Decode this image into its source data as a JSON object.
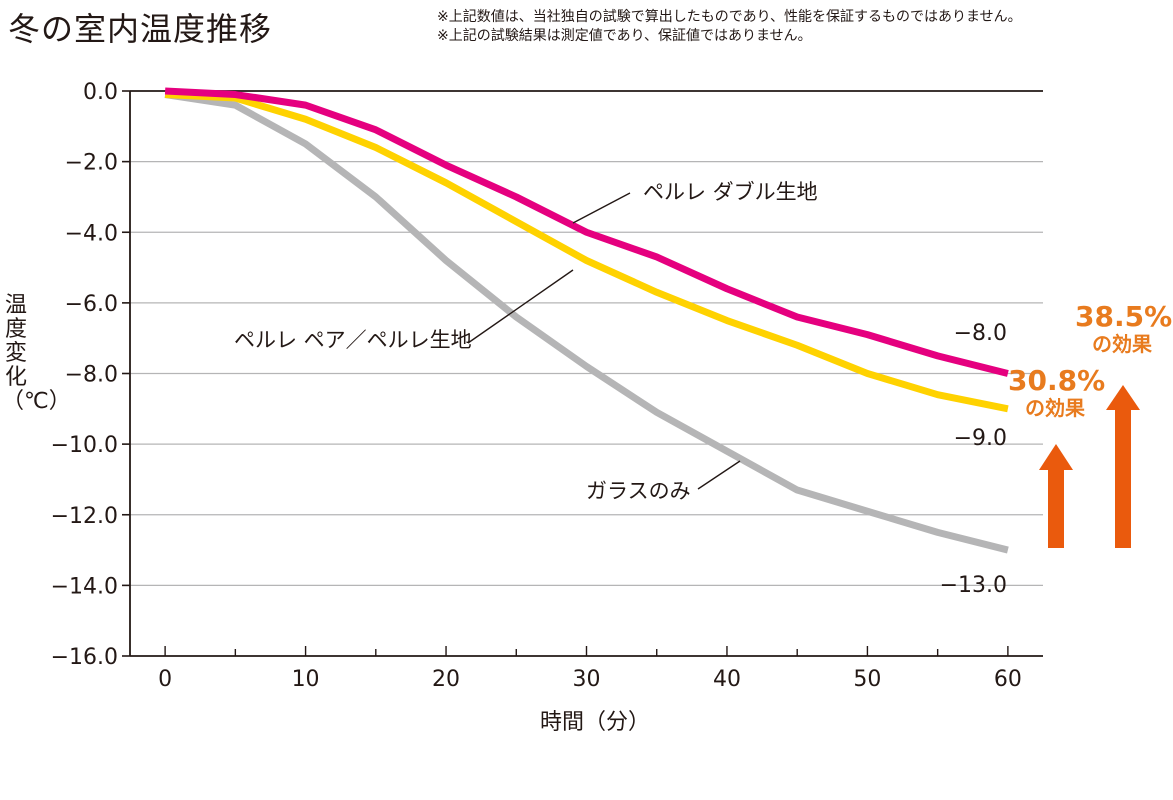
{
  "title": "冬の室内温度推移",
  "notes": [
    "※上記数値は、当社独自の試験で算出したものであり、性能を保証するものではありません。",
    "※上記の試験結果は測定値であり、保証値ではありません。"
  ],
  "colors": {
    "double": "#e5007f",
    "pair": "#ffd200",
    "glass": "#b5b5b6",
    "effect": "#e87b1e",
    "arrow": "#ea5a0d",
    "axis": "#231815",
    "grid": "#b5b5b6"
  },
  "chart_data": {
    "type": "line",
    "xlabel": "時間（分）",
    "ylabel": "温度変化（℃）",
    "x": [
      0,
      5,
      10,
      15,
      20,
      25,
      30,
      35,
      40,
      45,
      50,
      55,
      60
    ],
    "xticks": [
      "0",
      "10",
      "20",
      "30",
      "40",
      "50",
      "60"
    ],
    "xtick_values": [
      0,
      10,
      20,
      30,
      40,
      50,
      60
    ],
    "yticks": [
      "0.0",
      "−2.0",
      "−4.0",
      "−6.0",
      "−8.0",
      "−10.0",
      "−12.0",
      "−14.0",
      "−16.0"
    ],
    "ytick_values": [
      0,
      -2,
      -4,
      -6,
      -8,
      -10,
      -12,
      -14,
      -16
    ],
    "xlim": [
      -2.5,
      62.5
    ],
    "ylim": [
      -16,
      0
    ],
    "grid": "horizontal",
    "series": [
      {
        "name": "ガラスのみ",
        "key": "glass",
        "values": [
          -0.1,
          -0.4,
          -1.5,
          -3.0,
          -4.8,
          -6.4,
          -7.8,
          -9.1,
          -10.2,
          -11.3,
          -11.9,
          -12.5,
          -13.0
        ]
      },
      {
        "name": "ペルレ ペア／ペルレ生地",
        "key": "pair",
        "values": [
          -0.1,
          -0.2,
          -0.8,
          -1.6,
          -2.6,
          -3.7,
          -4.8,
          -5.7,
          -6.5,
          -7.2,
          -8.0,
          -8.6,
          -9.0
        ]
      },
      {
        "name": "ペルレ ダブル生地",
        "key": "double",
        "values": [
          0.0,
          -0.1,
          -0.4,
          -1.1,
          -2.1,
          -3.0,
          -4.0,
          -4.7,
          -5.6,
          -6.4,
          -6.9,
          -7.5,
          -8.0
        ]
      }
    ],
    "end_labels": [
      "−8.0",
      "−9.0",
      "−13.0"
    ]
  },
  "effects": [
    {
      "pct": "38.5%",
      "text": "の効果"
    },
    {
      "pct": "30.8%",
      "text": "の効果"
    }
  ]
}
